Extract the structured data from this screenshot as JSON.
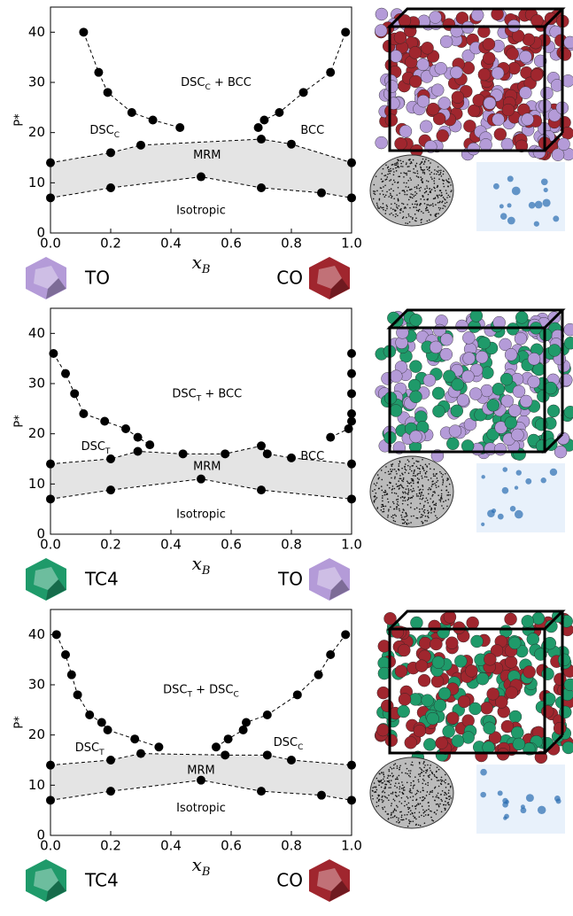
{
  "chart_data": [
    {
      "type": "line",
      "y_label": "P*",
      "x_label": [
        "x",
        "B"
      ],
      "xlim": [
        0,
        1
      ],
      "ylim": [
        0,
        45
      ],
      "xticks": [
        {
          "value": 0,
          "label": "0.0"
        },
        0.2,
        0.4,
        0.6,
        0.8,
        {
          "value": 1,
          "label": "1.0"
        }
      ],
      "yticks": [
        0,
        10,
        20,
        30,
        40
      ],
      "shade": "#e4e4e4",
      "annotations": [
        [
          "DSC",
          "C",
          " + BCC"
        ],
        [
          "DSC",
          "C"
        ],
        [
          "BCC"
        ],
        [
          "MRM"
        ],
        [
          "Isotropic"
        ]
      ],
      "shapes": [
        {
          "label": "TO",
          "color": "#b49bd8"
        },
        {
          "label": "CO",
          "color": "#a0262e"
        }
      ],
      "series": [
        {
          "color": "#000000",
          "x": [
            0.11,
            0.16,
            0.19,
            0.27,
            0.34,
            0.43
          ],
          "values": [
            40,
            32,
            28,
            24,
            22.5,
            21
          ]
        },
        {
          "color": "#000000",
          "x": [
            0.69,
            0.71,
            0.76,
            0.84,
            0.93,
            0.98
          ],
          "values": [
            21,
            22.5,
            24,
            28,
            32,
            40
          ]
        },
        {
          "color": "#000000",
          "x": [
            0,
            0.2,
            0.3,
            0.7,
            0.8,
            1
          ],
          "values": [
            14,
            16,
            17.5,
            18.7,
            17.7,
            14
          ]
        },
        {
          "color": "#000000",
          "x": [
            0,
            0.2,
            0.5,
            0.7,
            0.9,
            1
          ],
          "values": [
            7,
            9,
            11.2,
            9,
            8,
            7
          ]
        }
      ]
    },
    {
      "type": "line",
      "y_label": "P*",
      "x_label": [
        "x",
        "B"
      ],
      "xlim": [
        0,
        1
      ],
      "ylim": [
        0,
        45
      ],
      "xticks": [
        {
          "value": 0,
          "label": "0.0"
        },
        0.2,
        0.4,
        0.6,
        0.8,
        {
          "value": 1,
          "label": "1.0"
        }
      ],
      "yticks": [
        0,
        10,
        20,
        30,
        40
      ],
      "shade": "#e4e4e4",
      "annotations": [
        [
          "DSC",
          "T",
          " + BCC"
        ],
        [
          "DSC",
          "T"
        ],
        [
          "BCC"
        ],
        [
          "MRM"
        ],
        [
          "Isotropic"
        ]
      ],
      "shapes": [
        {
          "label": "TC4",
          "color": "#1f9a6a"
        },
        {
          "label": "TO",
          "color": "#b49bd8"
        }
      ],
      "series": [
        {
          "color": "#000000",
          "x": [
            0.01,
            0.05,
            0.08,
            0.11,
            0.18,
            0.25,
            0.29,
            0.33
          ],
          "values": [
            36,
            32,
            28,
            24,
            22.5,
            21,
            19.3,
            17.8
          ]
        },
        {
          "color": "#000000",
          "x": [
            0.93,
            0.99,
            1,
            1,
            1,
            1,
            1
          ],
          "values": [
            19.3,
            21,
            22.5,
            24,
            28,
            32,
            36
          ]
        },
        {
          "color": "#000000",
          "x": [
            0,
            0.2,
            0.29,
            0.44,
            0.58,
            0.7,
            0.72,
            0.8,
            1
          ],
          "values": [
            14,
            15,
            16.5,
            16,
            16,
            17.6,
            16,
            15.2,
            14
          ]
        },
        {
          "color": "#000000",
          "x": [
            0,
            0.2,
            0.5,
            0.7,
            1
          ],
          "values": [
            7,
            8.8,
            11,
            8.8,
            7
          ]
        }
      ]
    },
    {
      "type": "line",
      "y_label": "P*",
      "x_label": [
        "x",
        "B"
      ],
      "xlim": [
        0,
        1
      ],
      "ylim": [
        0,
        45
      ],
      "xticks": [
        {
          "value": 0,
          "label": "0.0"
        },
        0.2,
        0.4,
        0.6,
        0.8,
        {
          "value": 1,
          "label": "1.0"
        }
      ],
      "yticks": [
        0,
        10,
        20,
        30,
        40
      ],
      "shade": "#e4e4e4",
      "annotations": [
        [
          "DSC",
          "T",
          " + DSC",
          "C"
        ],
        [
          "DSC",
          "T"
        ],
        [
          "DSC",
          "C"
        ],
        [
          "MRM"
        ],
        [
          "Isotropic"
        ]
      ],
      "shapes": [
        {
          "label": "TC4",
          "color": "#1f9a6a"
        },
        {
          "label": "CO",
          "color": "#a0262e"
        }
      ],
      "series": [
        {
          "color": "#000000",
          "x": [
            0.02,
            0.05,
            0.07,
            0.09,
            0.13,
            0.17,
            0.19,
            0.28,
            0.36
          ],
          "values": [
            40,
            36,
            32,
            28,
            24,
            22.5,
            21,
            19.2,
            17.6
          ]
        },
        {
          "color": "#000000",
          "x": [
            0.55,
            0.59,
            0.64,
            0.65,
            0.72,
            0.82,
            0.89,
            0.93,
            0.98
          ],
          "values": [
            17.6,
            19.2,
            21,
            22.5,
            24,
            28,
            32,
            36,
            40
          ]
        },
        {
          "color": "#000000",
          "x": [
            0,
            0.2,
            0.3,
            0.58,
            0.72,
            0.8,
            1
          ],
          "values": [
            14,
            15,
            16.3,
            16,
            16,
            15,
            14
          ]
        },
        {
          "color": "#000000",
          "x": [
            0,
            0.2,
            0.5,
            0.7,
            0.9,
            1
          ],
          "values": [
            7,
            8.8,
            11,
            8.8,
            8,
            7
          ]
        }
      ]
    }
  ]
}
